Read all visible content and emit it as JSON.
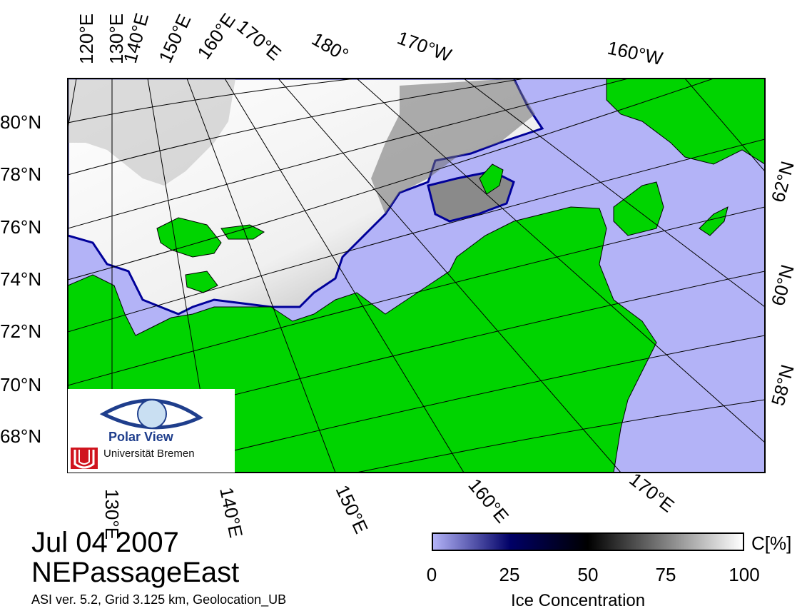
{
  "title": {
    "date": "Jul 04 2007",
    "region": "NEPassageEast",
    "info": "ASI ver. 5.2,  Grid 3.125 km, Geolocation_UB"
  },
  "colorbar": {
    "label": "Ice Concentration",
    "unit": "C[%]",
    "ticks": [
      "0",
      "25",
      "50",
      "75",
      "100"
    ],
    "range": [
      0,
      100
    ],
    "colors": [
      "#b3b3f7",
      "#000066",
      "#000000",
      "#808080",
      "#ffffff"
    ]
  },
  "logo": {
    "name": "Polar View",
    "institution": "Universität Bremen"
  },
  "map": {
    "colors": {
      "land": "#00d400",
      "open_water": "#b3b3f7",
      "ice_high": "#ffffff",
      "ice_mid": "#808080",
      "ice_edge": "#000099",
      "coast": "#000000",
      "grid": "#000000"
    },
    "labels": {
      "top": [
        "120°E",
        "130°E",
        "140°E",
        "150°E",
        "160°E",
        "170°E",
        "180°",
        "170°W",
        "160°W"
      ],
      "left": [
        "80°N",
        "78°N",
        "76°N",
        "74°N",
        "72°N",
        "70°N",
        "68°N"
      ],
      "right": [
        "62°N",
        "60°N",
        "58°N"
      ],
      "bottom": [
        "130°E",
        "140°E",
        "150°E",
        "160°E",
        "170°E"
      ]
    }
  }
}
